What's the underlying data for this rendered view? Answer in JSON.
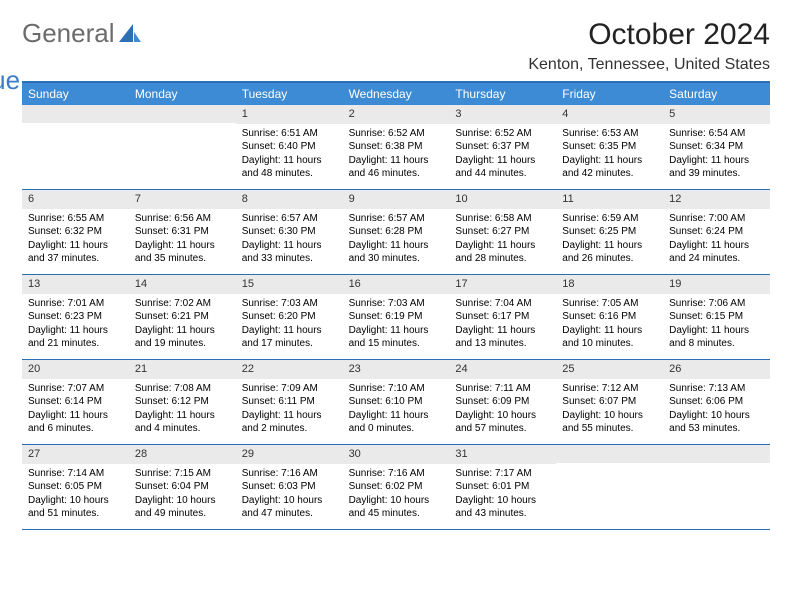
{
  "logo": {
    "text1": "General",
    "text2": "Blue"
  },
  "header": {
    "month_title": "October 2024",
    "location": "Kenton, Tennessee, United States"
  },
  "colors": {
    "header_bg": "#3d8bd4",
    "border": "#2d6fb5",
    "daynum_bg": "#eaeaea"
  },
  "day_names": [
    "Sunday",
    "Monday",
    "Tuesday",
    "Wednesday",
    "Thursday",
    "Friday",
    "Saturday"
  ],
  "weeks": [
    [
      null,
      null,
      {
        "n": "1",
        "sr": "6:51 AM",
        "ss": "6:40 PM",
        "dl": "11 hours and 48 minutes."
      },
      {
        "n": "2",
        "sr": "6:52 AM",
        "ss": "6:38 PM",
        "dl": "11 hours and 46 minutes."
      },
      {
        "n": "3",
        "sr": "6:52 AM",
        "ss": "6:37 PM",
        "dl": "11 hours and 44 minutes."
      },
      {
        "n": "4",
        "sr": "6:53 AM",
        "ss": "6:35 PM",
        "dl": "11 hours and 42 minutes."
      },
      {
        "n": "5",
        "sr": "6:54 AM",
        "ss": "6:34 PM",
        "dl": "11 hours and 39 minutes."
      }
    ],
    [
      {
        "n": "6",
        "sr": "6:55 AM",
        "ss": "6:32 PM",
        "dl": "11 hours and 37 minutes."
      },
      {
        "n": "7",
        "sr": "6:56 AM",
        "ss": "6:31 PM",
        "dl": "11 hours and 35 minutes."
      },
      {
        "n": "8",
        "sr": "6:57 AM",
        "ss": "6:30 PM",
        "dl": "11 hours and 33 minutes."
      },
      {
        "n": "9",
        "sr": "6:57 AM",
        "ss": "6:28 PM",
        "dl": "11 hours and 30 minutes."
      },
      {
        "n": "10",
        "sr": "6:58 AM",
        "ss": "6:27 PM",
        "dl": "11 hours and 28 minutes."
      },
      {
        "n": "11",
        "sr": "6:59 AM",
        "ss": "6:25 PM",
        "dl": "11 hours and 26 minutes."
      },
      {
        "n": "12",
        "sr": "7:00 AM",
        "ss": "6:24 PM",
        "dl": "11 hours and 24 minutes."
      }
    ],
    [
      {
        "n": "13",
        "sr": "7:01 AM",
        "ss": "6:23 PM",
        "dl": "11 hours and 21 minutes."
      },
      {
        "n": "14",
        "sr": "7:02 AM",
        "ss": "6:21 PM",
        "dl": "11 hours and 19 minutes."
      },
      {
        "n": "15",
        "sr": "7:03 AM",
        "ss": "6:20 PM",
        "dl": "11 hours and 17 minutes."
      },
      {
        "n": "16",
        "sr": "7:03 AM",
        "ss": "6:19 PM",
        "dl": "11 hours and 15 minutes."
      },
      {
        "n": "17",
        "sr": "7:04 AM",
        "ss": "6:17 PM",
        "dl": "11 hours and 13 minutes."
      },
      {
        "n": "18",
        "sr": "7:05 AM",
        "ss": "6:16 PM",
        "dl": "11 hours and 10 minutes."
      },
      {
        "n": "19",
        "sr": "7:06 AM",
        "ss": "6:15 PM",
        "dl": "11 hours and 8 minutes."
      }
    ],
    [
      {
        "n": "20",
        "sr": "7:07 AM",
        "ss": "6:14 PM",
        "dl": "11 hours and 6 minutes."
      },
      {
        "n": "21",
        "sr": "7:08 AM",
        "ss": "6:12 PM",
        "dl": "11 hours and 4 minutes."
      },
      {
        "n": "22",
        "sr": "7:09 AM",
        "ss": "6:11 PM",
        "dl": "11 hours and 2 minutes."
      },
      {
        "n": "23",
        "sr": "7:10 AM",
        "ss": "6:10 PM",
        "dl": "11 hours and 0 minutes."
      },
      {
        "n": "24",
        "sr": "7:11 AM",
        "ss": "6:09 PM",
        "dl": "10 hours and 57 minutes."
      },
      {
        "n": "25",
        "sr": "7:12 AM",
        "ss": "6:07 PM",
        "dl": "10 hours and 55 minutes."
      },
      {
        "n": "26",
        "sr": "7:13 AM",
        "ss": "6:06 PM",
        "dl": "10 hours and 53 minutes."
      }
    ],
    [
      {
        "n": "27",
        "sr": "7:14 AM",
        "ss": "6:05 PM",
        "dl": "10 hours and 51 minutes."
      },
      {
        "n": "28",
        "sr": "7:15 AM",
        "ss": "6:04 PM",
        "dl": "10 hours and 49 minutes."
      },
      {
        "n": "29",
        "sr": "7:16 AM",
        "ss": "6:03 PM",
        "dl": "10 hours and 47 minutes."
      },
      {
        "n": "30",
        "sr": "7:16 AM",
        "ss": "6:02 PM",
        "dl": "10 hours and 45 minutes."
      },
      {
        "n": "31",
        "sr": "7:17 AM",
        "ss": "6:01 PM",
        "dl": "10 hours and 43 minutes."
      },
      null,
      null
    ]
  ],
  "labels": {
    "sunrise": "Sunrise:",
    "sunset": "Sunset:",
    "daylight": "Daylight:"
  }
}
